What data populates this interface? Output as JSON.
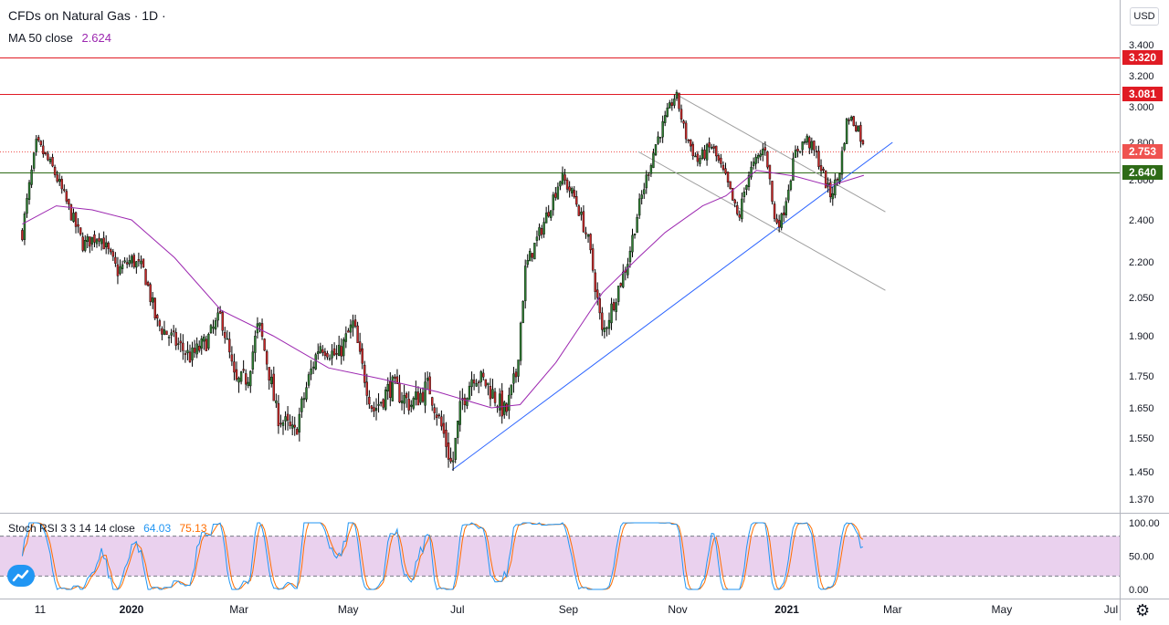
{
  "header": {
    "symbol_title": "CFDs on Natural Gas · 1D ·",
    "ma_label": "MA 50 close",
    "ma_value": "2.624"
  },
  "currency_label": "USD",
  "price_tags": [
    {
      "label": "3.320",
      "value": 3.32,
      "color": "#e01b24"
    },
    {
      "label": "3.081",
      "value": 3.081,
      "color": "#e01b24"
    },
    {
      "label": "2.753",
      "value": 2.753,
      "color": "#ef5350"
    },
    {
      "label": "2.640",
      "value": 2.64,
      "color": "#2e6b17"
    }
  ],
  "stoch": {
    "label": "Stoch RSI 3 3 14 14 close",
    "k_value": "64.03",
    "d_value": "75.13",
    "k_color": "#2196f3",
    "d_color": "#ff6d00",
    "band_upper": 80,
    "band_lower": 20,
    "ticks": [
      "100.00",
      "50.00",
      "0.00"
    ]
  },
  "chart_data": {
    "type": "candlestick",
    "title": "CFDs on Natural Gas · 1D ·",
    "y_axis_labels": [
      "3.400",
      "3.200",
      "3.000",
      "2.800",
      "2.600",
      "2.400",
      "2.200",
      "2.050",
      "1.900",
      "1.750",
      "1.650",
      "1.550",
      "1.450",
      "1.370"
    ],
    "y_ticks": [
      3.4,
      3.2,
      3.0,
      2.8,
      2.6,
      2.4,
      2.2,
      2.05,
      1.9,
      1.75,
      1.65,
      1.55,
      1.45,
      1.37
    ],
    "x_axis_labels": [
      "11",
      "2020",
      "Mar",
      "May",
      "Jul",
      "Sep",
      "Nov",
      "2021",
      "Mar",
      "May",
      "Jul"
    ],
    "x_axis_bold": [
      "2020",
      "2021"
    ],
    "price_path": [
      {
        "d": "Nov 01 2019",
        "v": 2.34
      },
      {
        "d": "Nov 05 2019",
        "v": 2.57
      },
      {
        "d": "Nov 09 2019",
        "v": 2.8
      },
      {
        "d": "Nov 18 2019",
        "v": 2.66
      },
      {
        "d": "Nov 26 2019",
        "v": 2.48
      },
      {
        "d": "Dec 05 2019",
        "v": 2.28
      },
      {
        "d": "Dec 14 2019",
        "v": 2.33
      },
      {
        "d": "Dec 24 2019",
        "v": 2.16
      },
      {
        "d": "Jan 01 2020",
        "v": 2.21
      },
      {
        "d": "Jan 08 2020",
        "v": 2.16
      },
      {
        "d": "Jan 15 2020",
        "v": 1.95
      },
      {
        "d": "Jan 25 2020",
        "v": 1.88
      },
      {
        "d": "Feb 03 2020",
        "v": 1.82
      },
      {
        "d": "Feb 12 2020",
        "v": 1.88
      },
      {
        "d": "Feb 20 2020",
        "v": 1.98
      },
      {
        "d": "Feb 28 2020",
        "v": 1.72
      },
      {
        "d": "Mar 06 2020",
        "v": 1.75
      },
      {
        "d": "Mar 12 2020",
        "v": 1.95
      },
      {
        "d": "Mar 22 2020",
        "v": 1.63
      },
      {
        "d": "Apr 01 2020",
        "v": 1.56
      },
      {
        "d": "Apr 08 2020",
        "v": 1.72
      },
      {
        "d": "Apr 15 2020",
        "v": 1.87
      },
      {
        "d": "Apr 25 2020",
        "v": 1.82
      },
      {
        "d": "May 04 2020",
        "v": 1.95
      },
      {
        "d": "May 08 2020",
        "v": 1.8
      },
      {
        "d": "May 15 2020",
        "v": 1.64
      },
      {
        "d": "May 25 2020",
        "v": 1.72
      },
      {
        "d": "Jun 05 2020",
        "v": 1.66
      },
      {
        "d": "Jun 15 2020",
        "v": 1.72
      },
      {
        "d": "Jun 24 2020",
        "v": 1.55
      },
      {
        "d": "Jun 28 2020",
        "v": 1.46
      },
      {
        "d": "Jul 03 2020",
        "v": 1.66
      },
      {
        "d": "Jul 10 2020",
        "v": 1.76
      },
      {
        "d": "Jul 18 2020",
        "v": 1.72
      },
      {
        "d": "Jul 28 2020",
        "v": 1.63
      },
      {
        "d": "Aug 03 2020",
        "v": 1.76
      },
      {
        "d": "Aug 08 2020",
        "v": 2.17
      },
      {
        "d": "Aug 18 2020",
        "v": 2.38
      },
      {
        "d": "Aug 28 2020",
        "v": 2.62
      },
      {
        "d": "Sep 05 2020",
        "v": 2.5
      },
      {
        "d": "Sep 12 2020",
        "v": 2.3
      },
      {
        "d": "Sep 20 2020",
        "v": 1.9
      },
      {
        "d": "Sep 27 2020",
        "v": 2.05
      },
      {
        "d": "Oct 04 2020",
        "v": 2.2
      },
      {
        "d": "Oct 10 2020",
        "v": 2.45
      },
      {
        "d": "Oct 20 2020",
        "v": 2.8
      },
      {
        "d": "Oct 31 2020",
        "v": 3.081
      },
      {
        "d": "Nov 05 2020",
        "v": 2.85
      },
      {
        "d": "Nov 12 2020",
        "v": 2.7
      },
      {
        "d": "Nov 20 2020",
        "v": 2.78
      },
      {
        "d": "Nov 28 2020",
        "v": 2.6
      },
      {
        "d": "Dec 05 2020",
        "v": 2.4
      },
      {
        "d": "Dec 10 2020",
        "v": 2.62
      },
      {
        "d": "Dec 20 2020",
        "v": 2.78
      },
      {
        "d": "Dec 25 2020",
        "v": 2.4
      },
      {
        "d": "Dec 29 2020",
        "v": 2.4
      },
      {
        "d": "Jan 06 2021",
        "v": 2.75
      },
      {
        "d": "Jan 12 2021",
        "v": 2.82
      },
      {
        "d": "Jan 18 2021",
        "v": 2.72
      },
      {
        "d": "Jan 25 2021",
        "v": 2.52
      },
      {
        "d": "Jan 30 2021",
        "v": 2.62
      },
      {
        "d": "Feb 04 2021",
        "v": 2.95
      },
      {
        "d": "Feb 10 2021",
        "v": 2.88
      },
      {
        "d": "Feb 13 2021",
        "v": 2.753
      }
    ],
    "ma50_path": [
      {
        "d": "Nov 01 2019",
        "v": 2.38
      },
      {
        "d": "Nov 20 2019",
        "v": 2.47
      },
      {
        "d": "Dec 10 2019",
        "v": 2.45
      },
      {
        "d": "Jan 01 2020",
        "v": 2.4
      },
      {
        "d": "Jan 25 2020",
        "v": 2.22
      },
      {
        "d": "Feb 20 2020",
        "v": 2.0
      },
      {
        "d": "Mar 20 2020",
        "v": 1.9
      },
      {
        "d": "Apr 20 2020",
        "v": 1.78
      },
      {
        "d": "May 20 2020",
        "v": 1.74
      },
      {
        "d": "Jun 20 2020",
        "v": 1.7
      },
      {
        "d": "Jul 20 2020",
        "v": 1.65
      },
      {
        "d": "Aug 05 2020",
        "v": 1.66
      },
      {
        "d": "Aug 25 2020",
        "v": 1.8
      },
      {
        "d": "Sep 20 2020",
        "v": 2.07
      },
      {
        "d": "Oct 10 2020",
        "v": 2.22
      },
      {
        "d": "Oct 25 2020",
        "v": 2.34
      },
      {
        "d": "Nov 15 2020",
        "v": 2.47
      },
      {
        "d": "Nov 28 2020",
        "v": 2.52
      },
      {
        "d": "Dec 15 2020",
        "v": 2.65
      },
      {
        "d": "Jan 05 2021",
        "v": 2.62
      },
      {
        "d": "Jan 25 2021",
        "v": 2.57
      },
      {
        "d": "Feb 13 2021",
        "v": 2.624
      }
    ],
    "horizontal_lines": [
      {
        "value": 3.32,
        "color": "#e01b24",
        "style": "solid"
      },
      {
        "value": 3.081,
        "color": "#e01b24",
        "style": "solid"
      },
      {
        "value": 2.753,
        "color": "#ef5350",
        "style": "dotted"
      },
      {
        "value": 2.64,
        "color": "#2e6b17",
        "style": "solid"
      }
    ],
    "trend_lines": [
      {
        "name": "uptrend",
        "color": "#2962ff",
        "from": {
          "d": "Jun 28 2020",
          "v": 1.455
        },
        "to": {
          "d": "Mar 01 2021",
          "v": 2.8
        }
      },
      {
        "name": "channel-upper",
        "color": "#9e9e9e",
        "from": {
          "d": "Oct 31 2020",
          "v": 3.081
        },
        "to": {
          "d": "Feb 25 2021",
          "v": 2.44
        }
      },
      {
        "name": "channel-lower",
        "color": "#9e9e9e",
        "from": {
          "d": "Oct 10 2020",
          "v": 2.75
        },
        "to": {
          "d": "Feb 25 2021",
          "v": 2.08
        }
      }
    ]
  }
}
